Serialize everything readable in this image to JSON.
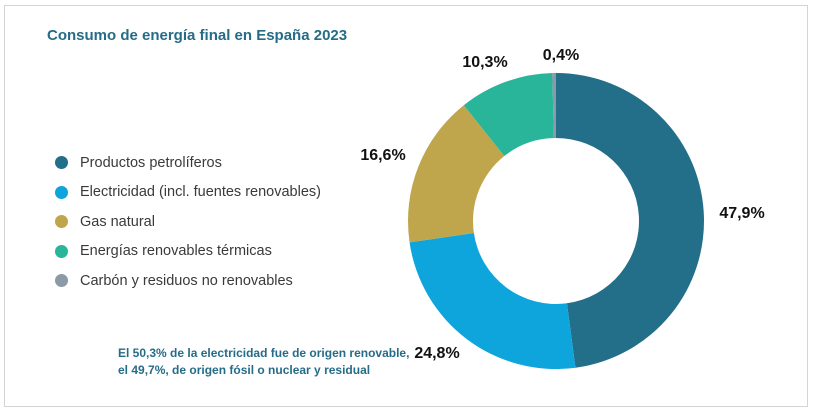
{
  "chart_data": {
    "type": "pie",
    "title": "Consumo de energía final en España 2023",
    "categories": [
      "Productos petrolíferos",
      "Electricidad (incl. fuentes renovables)",
      "Gas natural",
      "Energías renovables térmicas",
      "Carbón y residuos no renovables"
    ],
    "values": [
      47.9,
      24.8,
      16.6,
      10.3,
      0.4
    ],
    "value_labels": [
      "47,9%",
      "24,8%",
      "16,6%",
      "10,3%",
      "0,4%"
    ],
    "colors": [
      "#236e88",
      "#0ea5dd",
      "#bfa64c",
      "#28b59a",
      "#8a9aa6"
    ],
    "donut": true,
    "legend_position": "left"
  },
  "note": {
    "line1": "El 50,3% de la electricidad fue de origen renovable,",
    "line2": "el 49,7%, de origen fósil o nuclear y residual"
  }
}
